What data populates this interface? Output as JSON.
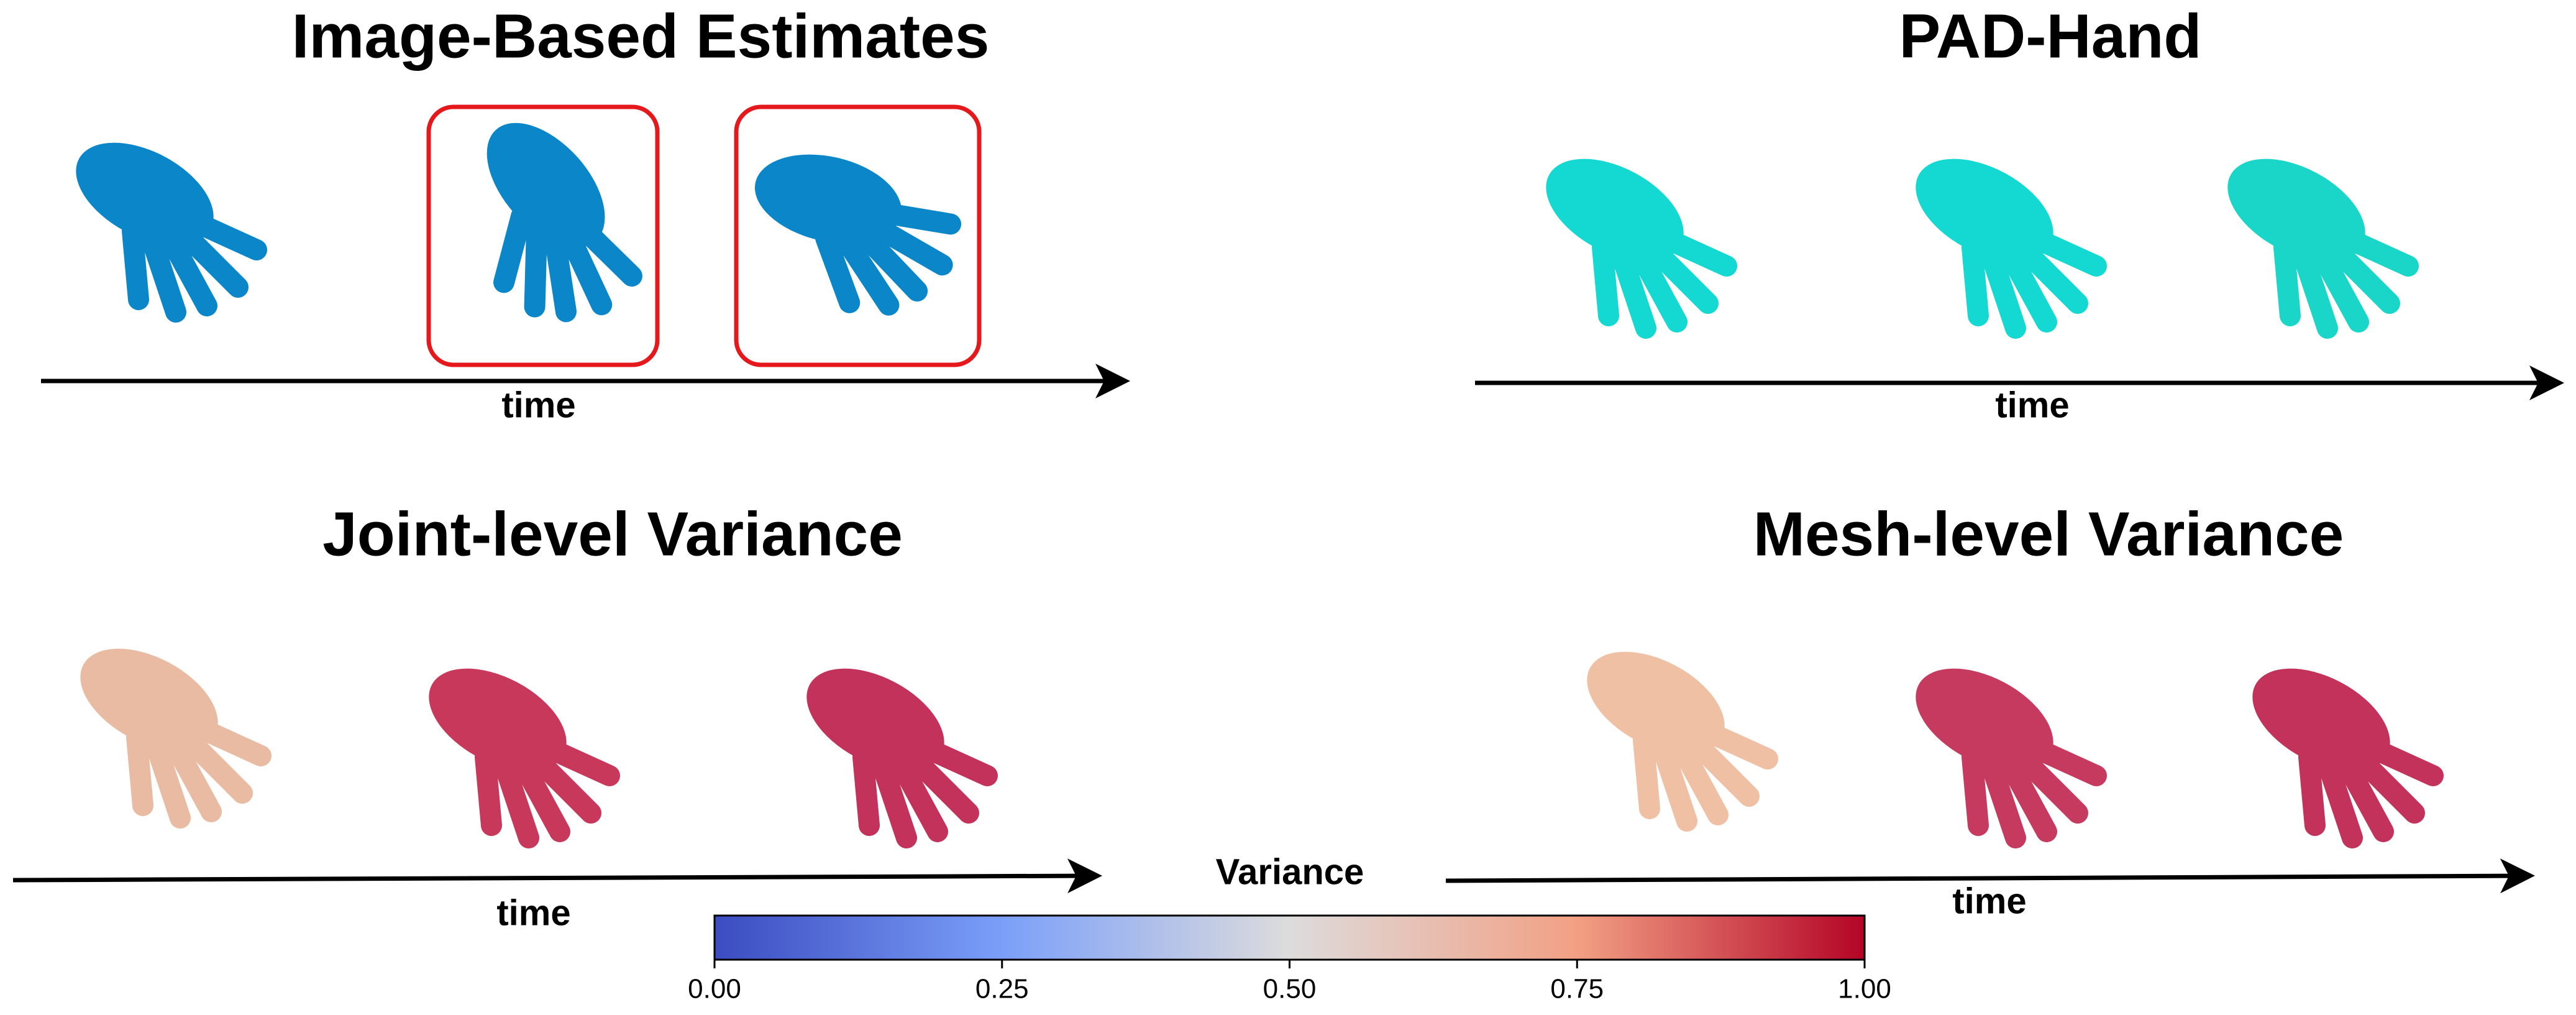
{
  "panels": [
    {
      "title": "Image-Based Estimates",
      "axis_label": "time"
    },
    {
      "title": "PAD-Hand",
      "axis_label": "time"
    },
    {
      "title": "Joint-level Variance",
      "axis_label": "time"
    },
    {
      "title": "Mesh-level Variance",
      "axis_label": "time"
    }
  ],
  "colorbar": {
    "title": "Variance",
    "lim": [
      0,
      1
    ],
    "ticks": [
      {
        "value": 0,
        "label": "0.00"
      },
      {
        "value": 0.25,
        "label": "0.25"
      },
      {
        "value": 0.5,
        "label": "0.50"
      },
      {
        "value": 0.75,
        "label": "0.75"
      },
      {
        "value": 1,
        "label": "1.00"
      }
    ]
  }
}
